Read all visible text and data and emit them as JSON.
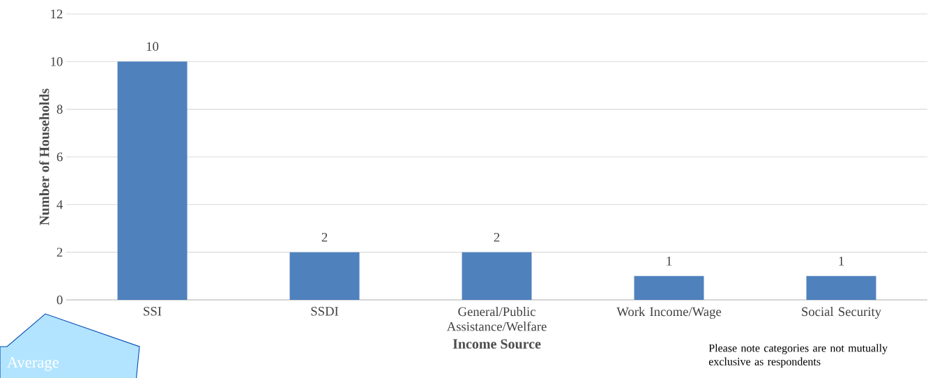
{
  "chart_data": {
    "type": "bar",
    "xlabel": "Income Source",
    "ylabel": "Number of Households",
    "categories": [
      "SSI",
      "SSDI",
      "General/Public Assistance/Welfare",
      "Work Income/Wage",
      "Social Security"
    ],
    "values": [
      10,
      2,
      2,
      1,
      1
    ],
    "color": "#4f81bd",
    "ylim": [
      0,
      12
    ],
    "yticks": [
      0,
      2,
      4,
      6,
      8,
      10,
      12
    ],
    "grid": "y",
    "data_labels": true,
    "annotations": [
      "Average",
      "Please note categories are not mutually exclusive as respondents"
    ]
  }
}
